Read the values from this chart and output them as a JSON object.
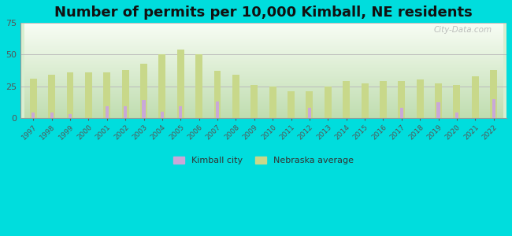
{
  "title": "Number of permits per 10,000 Kimball, NE residents",
  "years": [
    1997,
    1998,
    1999,
    2000,
    2001,
    2002,
    2003,
    2004,
    2005,
    2006,
    2007,
    2008,
    2009,
    2010,
    2011,
    2012,
    2013,
    2014,
    2015,
    2016,
    2017,
    2018,
    2019,
    2020,
    2021,
    2022
  ],
  "kimball": [
    4,
    4,
    3,
    0,
    9,
    9,
    14,
    5,
    9,
    0,
    13,
    0,
    0,
    0,
    0,
    8,
    0,
    0,
    0,
    0,
    8,
    0,
    12,
    4,
    0,
    15
  ],
  "nebraska": [
    31,
    34,
    36,
    36,
    36,
    38,
    43,
    50,
    54,
    50,
    37,
    34,
    26,
    25,
    21,
    21,
    25,
    29,
    27,
    29,
    29,
    30,
    27,
    26,
    33,
    38
  ],
  "kimball_color": "#c9a8d8",
  "nebraska_color": "#c8d88a",
  "background_outer": "#00dddd",
  "ylim": [
    0,
    75
  ],
  "yticks": [
    0,
    25,
    50,
    75
  ],
  "title_fontsize": 13,
  "watermark": "City-Data.com",
  "legend_kimball": "Kimball city",
  "legend_nebraska": "Nebraska average"
}
